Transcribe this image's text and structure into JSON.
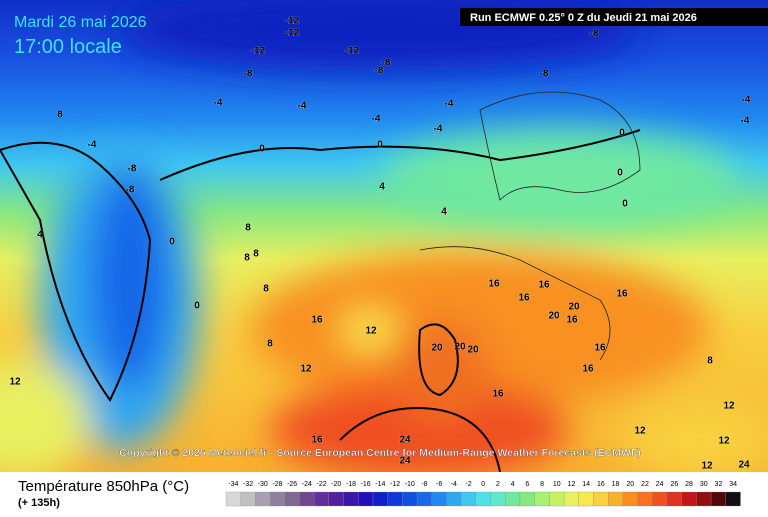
{
  "header": {
    "date": "Mardi 26 mai 2026",
    "time": "17:00 locale",
    "run": "Run ECMWF 0.25° 0 Z du Jeudi 21 mai 2026"
  },
  "copyright": "Copyright © 2026 Meteociel.fr - Source European Centre for Medium-Range Weather Forecasts (ECMWF)",
  "legend": {
    "title": "Température 850hPa (°C)",
    "subtitle": "(+ 135h)",
    "ticks": [
      -34,
      -32,
      -30,
      -28,
      -26,
      -24,
      -22,
      -20,
      -18,
      -16,
      -14,
      -12,
      -10,
      -8,
      -6,
      -4,
      -2,
      0,
      2,
      4,
      6,
      8,
      10,
      12,
      14,
      16,
      18,
      20,
      22,
      24,
      26,
      28,
      30,
      32,
      34
    ],
    "colors": [
      "#d8d8d8",
      "#c0c0c0",
      "#a8a0b0",
      "#9080a0",
      "#806890",
      "#704890",
      "#603098",
      "#5020a0",
      "#3818a8",
      "#2010b8",
      "#1020c8",
      "#1038d8",
      "#1050e0",
      "#1868e8",
      "#2088f0",
      "#30a8f0",
      "#40c8f0",
      "#50e0e8",
      "#60e8c8",
      "#70e8a0",
      "#88e880",
      "#a8f070",
      "#c8f060",
      "#e8f060",
      "#f8e850",
      "#f8d040",
      "#f8b030",
      "#f89020",
      "#f87020",
      "#f05020",
      "#e03020",
      "#c01818",
      "#901010",
      "#500808",
      "#101010"
    ]
  },
  "contour_labels": [
    -12,
    -12,
    -12,
    -12,
    -8,
    -8,
    -8,
    -4,
    -4,
    -4,
    -4,
    -4,
    -8,
    -8,
    -4,
    -4,
    8,
    -4,
    -8,
    -8,
    0,
    0,
    0,
    0,
    0,
    0,
    0,
    4,
    4,
    4,
    8,
    8,
    8,
    8,
    8,
    16,
    12,
    16,
    16,
    16,
    20,
    20,
    16,
    16,
    16,
    16,
    20,
    20,
    20,
    16,
    12,
    12,
    16,
    24,
    24,
    12,
    12,
    12,
    12,
    24,
    8
  ]
}
